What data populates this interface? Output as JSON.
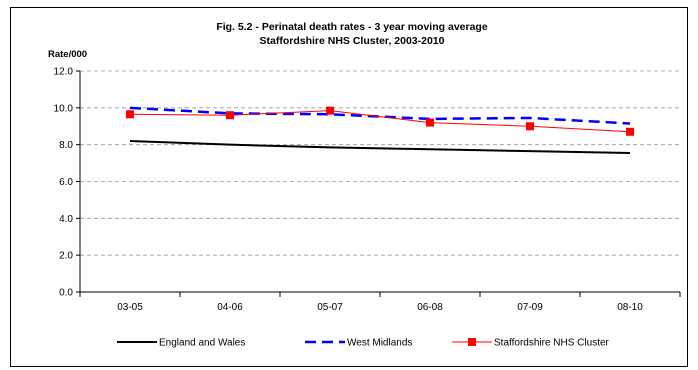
{
  "chart_data": {
    "type": "line",
    "title": "Fig. 5.2 - Perinatal death rates - 3 year moving average",
    "subtitle": "Staffordshire NHS Cluster, 2003-2010",
    "ylabel": "Rate/000",
    "xlabel": "",
    "categories": [
      "03-05",
      "04-06",
      "05-07",
      "06-08",
      "07-09",
      "08-10"
    ],
    "ylim": [
      0,
      12
    ],
    "yticks": [
      "0.0",
      "2.0",
      "4.0",
      "6.0",
      "8.0",
      "10.0",
      "12.0"
    ],
    "grid": true,
    "legend_position": "bottom",
    "series": [
      {
        "name": "England and Wales",
        "values": [
          8.2,
          8.0,
          7.85,
          7.75,
          7.65,
          7.55
        ],
        "color": "#000000",
        "style": "solid",
        "marker": "none"
      },
      {
        "name": "West Midlands",
        "values": [
          10.0,
          9.7,
          9.65,
          9.4,
          9.45,
          9.15
        ],
        "color": "#0000ff",
        "style": "dashed",
        "marker": "none"
      },
      {
        "name": "Staffordshire NHS Cluster",
        "values": [
          9.65,
          9.6,
          9.85,
          9.2,
          9.0,
          8.7
        ],
        "color": "#ff0000",
        "style": "solid",
        "marker": "square"
      }
    ]
  }
}
